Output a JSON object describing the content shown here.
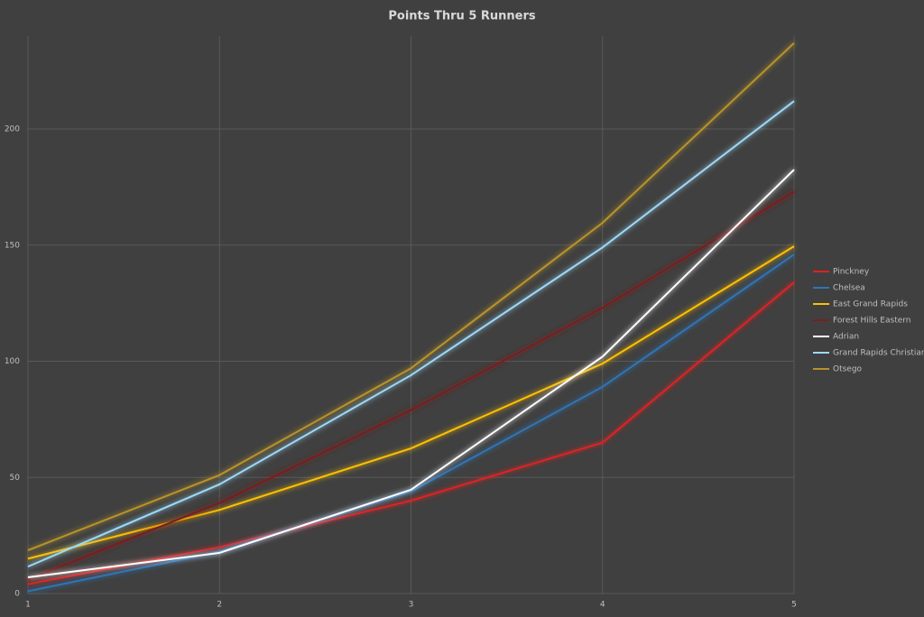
{
  "chart_data": {
    "type": "line",
    "title": "Points Thru 5 Runners",
    "x": [
      1,
      2,
      3,
      4,
      5
    ],
    "xlim": [
      1,
      5
    ],
    "xticks": [
      1,
      2,
      3,
      4,
      5
    ],
    "ylim": [
      0,
      240
    ],
    "yticks": [
      0,
      50,
      100,
      150,
      200
    ],
    "grid": true,
    "legend": "right",
    "series": [
      {
        "name": "Pinckney",
        "color": "#e02020",
        "values": [
          4,
          20,
          40,
          65,
          134
        ]
      },
      {
        "name": "Chelsea",
        "color": "#2e75b6",
        "values": [
          1,
          18,
          44,
          89,
          146
        ]
      },
      {
        "name": "East Grand Rapids",
        "color": "#ffc000",
        "values": [
          15,
          36,
          62.5,
          99,
          149.5
        ]
      },
      {
        "name": "Forest Hills Eastern",
        "color": "#7b1f1f",
        "values": [
          6,
          39,
          79,
          123,
          173
        ]
      },
      {
        "name": "Adrian",
        "color": "#ffffff",
        "values": [
          7,
          17.5,
          44.7,
          102,
          182.5
        ]
      },
      {
        "name": "Grand Rapids Christian",
        "color": "#9dd9f7",
        "values": [
          11.6,
          47,
          94,
          149,
          212
        ]
      },
      {
        "name": "Otsego",
        "color": "#b8932b",
        "values": [
          18.6,
          51,
          97,
          159.6,
          237
        ]
      }
    ]
  }
}
